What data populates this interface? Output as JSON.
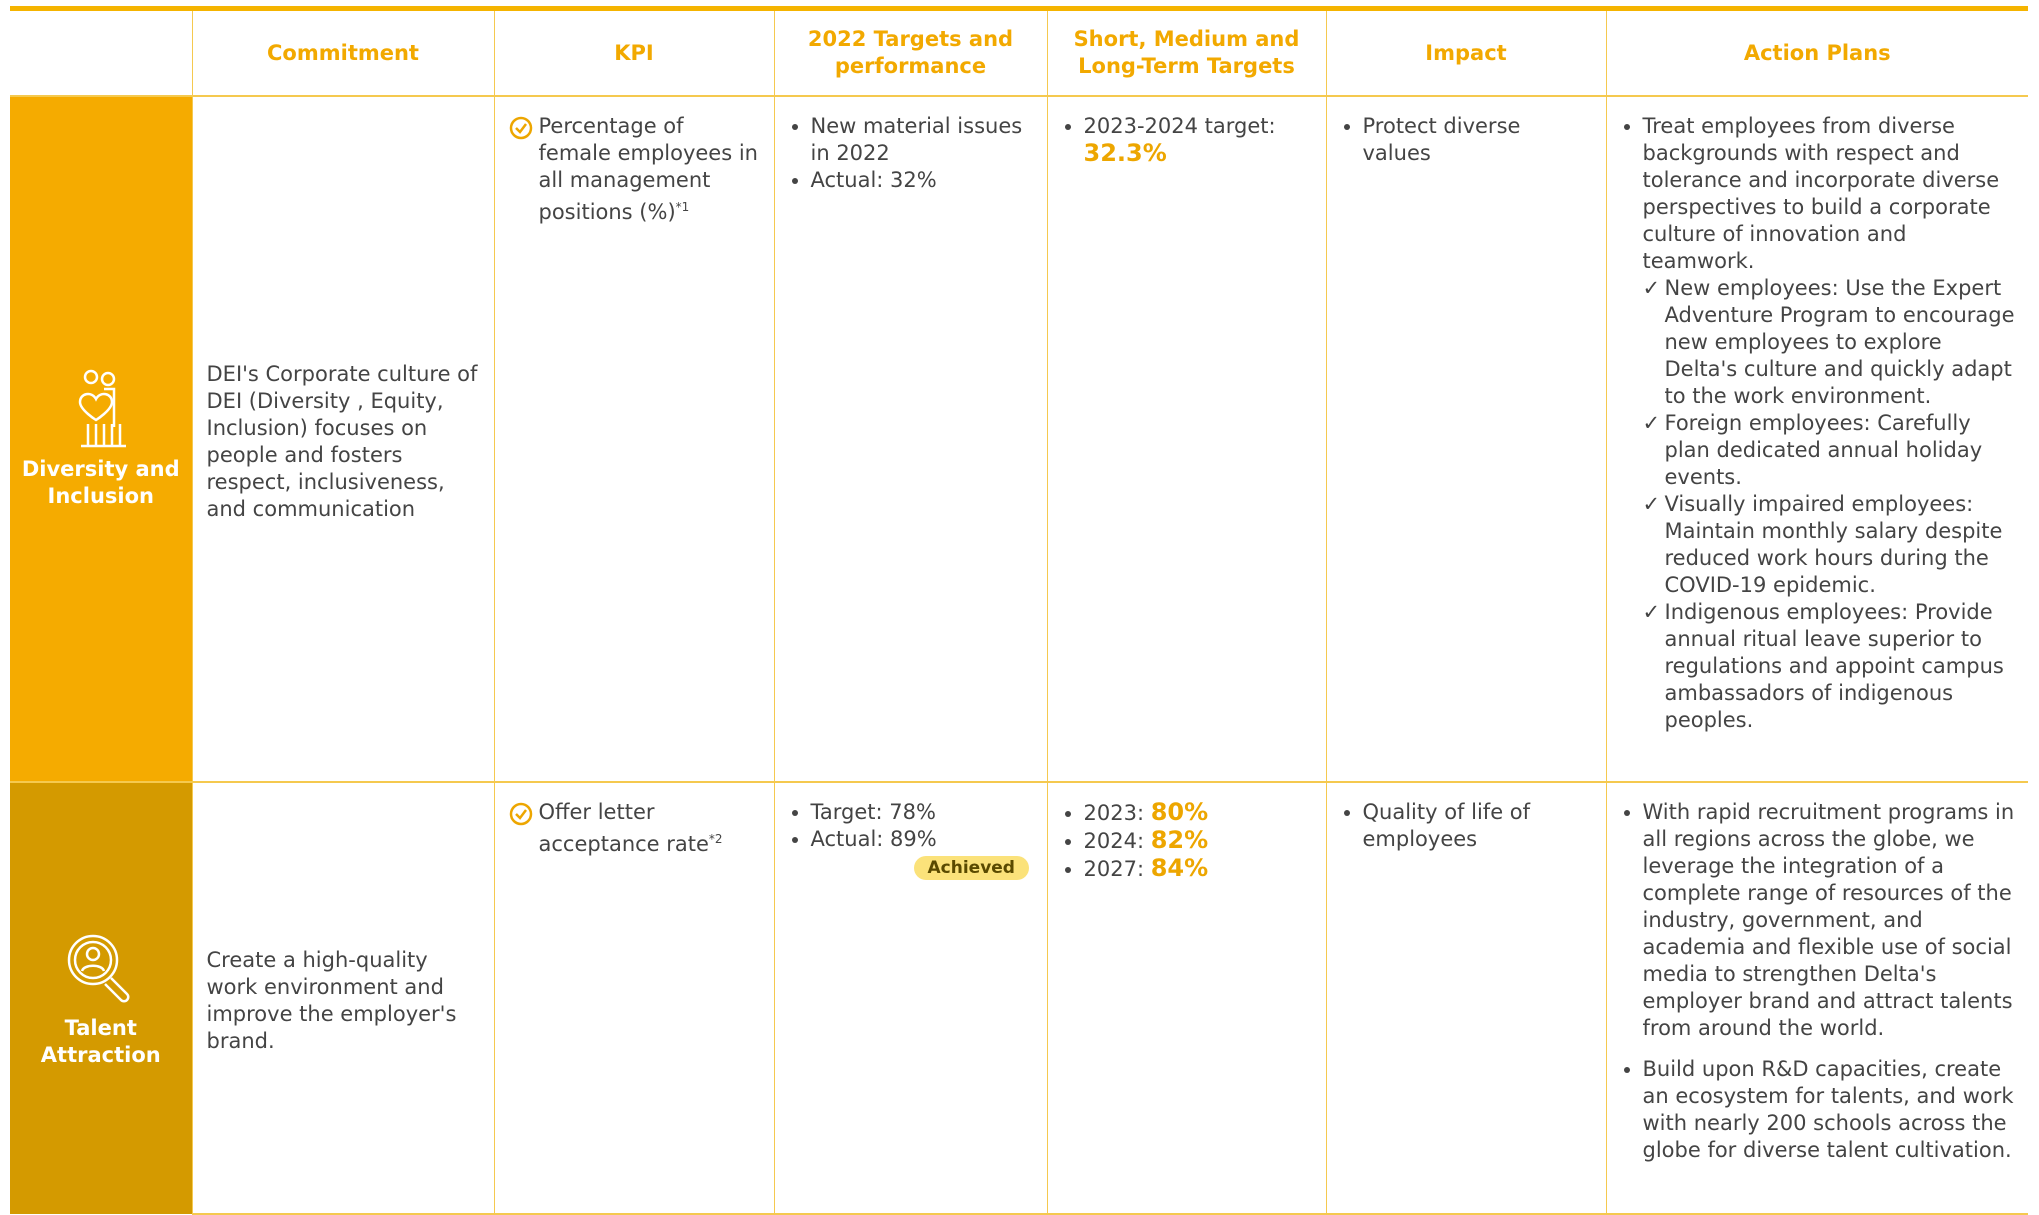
{
  "header": {
    "columns": [
      "Commitment",
      "KPI",
      "2022 Targets and performance",
      "Short, Medium and Long-Term Targets",
      "Impact",
      "Action Plans"
    ]
  },
  "rows": [
    {
      "category": "Diversity and Inclusion",
      "commitment": "DEI's Corporate culture of DEI (Diversity , Equity, Inclusion) focuses on people and fosters respect, inclusiveness, and communication",
      "kpi": "Percentage of female employees in all management positions (%)",
      "kpi_note": "*1",
      "performance": [
        "New material issues in 2022",
        "Actual: 32%"
      ],
      "targets": [
        {
          "label": "2023-2024 target:",
          "value": "32.3%"
        }
      ],
      "impact": [
        "Protect diverse values"
      ],
      "action_plans": [
        {
          "text": "Treat employees from diverse backgrounds with respect and tolerance and incorporate diverse perspectives to build a corporate culture of innovation and teamwork.",
          "items": [
            "New employees: Use the Expert Adventure Program to encourage new employees to explore Delta's culture and quickly adapt to the work environment.",
            "Foreign employees: Carefully plan dedicated annual holiday events.",
            "Visually impaired employees: Maintain monthly salary despite reduced work hours during the COVID-19 epidemic.",
            "Indigenous employees: Provide annual ritual leave superior to regulations and appoint campus ambassadors of indigenous peoples."
          ]
        }
      ]
    },
    {
      "category": "Talent Attraction",
      "commitment": "Create a high-quality work environment and improve the employer's brand.",
      "kpi": "Offer letter acceptance rate",
      "kpi_note": "*2",
      "performance": [
        "Target: 78%",
        "Actual: 89%"
      ],
      "badge": "Achieved",
      "targets": [
        {
          "label": "2023:",
          "value": "80%"
        },
        {
          "label": "2024:",
          "value": "82%"
        },
        {
          "label": "2027:",
          "value": "84%"
        }
      ],
      "impact": [
        "Quality of life of employees"
      ],
      "action_plans": [
        {
          "text": "With rapid recruitment programs in all regions across the globe, we leverage the integration of a complete range of resources of the industry, government, and academia and flexible use of social media to strengthen Delta's employer brand and attract talents from around the world."
        },
        {
          "text": "Build upon R&D capacities, create an ecosystem for talents, and work with nearly 200 schools across the globe for diverse talent cultivation."
        }
      ]
    }
  ]
}
